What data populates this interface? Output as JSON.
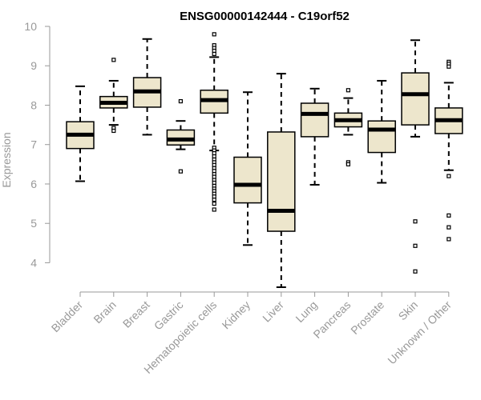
{
  "chart_data": {
    "type": "boxplot",
    "title": "ENSG00000142444 - C19orf52",
    "xlabel": "",
    "ylabel": "Expression",
    "ylim": [
      3.4,
      10.0
    ],
    "yticks": [
      4,
      5,
      6,
      7,
      8,
      9,
      10
    ],
    "grid": false,
    "colors": {
      "box_fill": "#ede6cc",
      "box_stroke": "#000000",
      "axis": "#999999",
      "text": "#999999",
      "outlier": "#000000"
    },
    "categories": [
      "Bladder",
      "Brain",
      "Breast",
      "Gastric",
      "Hematopoietic cells",
      "Kidney",
      "Liver",
      "Lung",
      "Pancreas",
      "Prostate",
      "Skin",
      "Unknown / Other"
    ],
    "series": [
      {
        "category": "Bladder",
        "whisker_low": 6.07,
        "q1": 6.9,
        "median": 7.25,
        "q3": 7.58,
        "whisker_high": 8.48,
        "outliers": []
      },
      {
        "category": "Brain",
        "whisker_low": 7.5,
        "q1": 7.93,
        "median": 8.06,
        "q3": 8.22,
        "whisker_high": 8.62,
        "outliers": [
          9.15,
          7.42,
          7.35
        ]
      },
      {
        "category": "Breast",
        "whisker_low": 7.25,
        "q1": 7.95,
        "median": 8.35,
        "q3": 8.7,
        "whisker_high": 9.68,
        "outliers": []
      },
      {
        "category": "Gastric",
        "whisker_low": 6.88,
        "q1": 6.99,
        "median": 7.13,
        "q3": 7.37,
        "whisker_high": 7.6,
        "outliers": [
          8.1,
          6.32
        ]
      },
      {
        "category": "Hematopoietic cells",
        "whisker_low": 6.85,
        "q1": 7.8,
        "median": 8.13,
        "q3": 8.38,
        "whisker_high": 9.22,
        "outliers": [
          9.8,
          9.52,
          9.45,
          9.38,
          9.3,
          6.92,
          6.85,
          6.78,
          6.7,
          6.62,
          6.55,
          6.48,
          6.4,
          6.33,
          6.25,
          6.18,
          6.1,
          6.03,
          5.95,
          5.88,
          5.82,
          5.75,
          5.68,
          5.6,
          5.5,
          5.35
        ]
      },
      {
        "category": "Kidney",
        "whisker_low": 4.45,
        "q1": 5.52,
        "median": 5.98,
        "q3": 6.68,
        "whisker_high": 8.33,
        "outliers": []
      },
      {
        "category": "Liver",
        "whisker_low": 3.38,
        "q1": 4.8,
        "median": 5.32,
        "q3": 7.32,
        "whisker_high": 8.8,
        "outliers": []
      },
      {
        "category": "Lung",
        "whisker_low": 5.98,
        "q1": 7.2,
        "median": 7.78,
        "q3": 8.05,
        "whisker_high": 8.42,
        "outliers": []
      },
      {
        "category": "Pancreas",
        "whisker_low": 7.25,
        "q1": 7.45,
        "median": 7.62,
        "q3": 7.8,
        "whisker_high": 8.18,
        "outliers": [
          8.38,
          6.55,
          6.5
        ]
      },
      {
        "category": "Prostate",
        "whisker_low": 6.03,
        "q1": 6.8,
        "median": 7.38,
        "q3": 7.6,
        "whisker_high": 8.62,
        "outliers": []
      },
      {
        "category": "Skin",
        "whisker_low": 7.2,
        "q1": 7.5,
        "median": 8.28,
        "q3": 8.82,
        "whisker_high": 9.65,
        "outliers": [
          5.05,
          4.43,
          3.78
        ]
      },
      {
        "category": "Unknown / Other",
        "whisker_low": 6.35,
        "q1": 7.28,
        "median": 7.62,
        "q3": 7.93,
        "whisker_high": 8.57,
        "outliers": [
          9.1,
          9.05,
          8.98,
          6.2,
          5.2,
          4.9,
          4.6
        ]
      }
    ]
  }
}
